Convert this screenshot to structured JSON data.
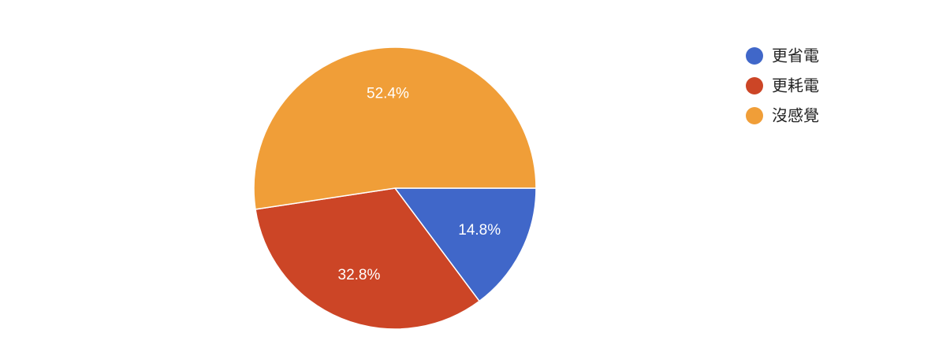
{
  "chart_data": {
    "type": "pie",
    "categories": [
      "更省電",
      "更耗電",
      "沒感覺"
    ],
    "values": [
      14.8,
      32.8,
      52.4
    ],
    "value_labels": [
      "14.8%",
      "32.8%",
      "52.4%"
    ],
    "colors": [
      "#4067c9",
      "#cc4526",
      "#f09e38"
    ],
    "legend": "right"
  }
}
